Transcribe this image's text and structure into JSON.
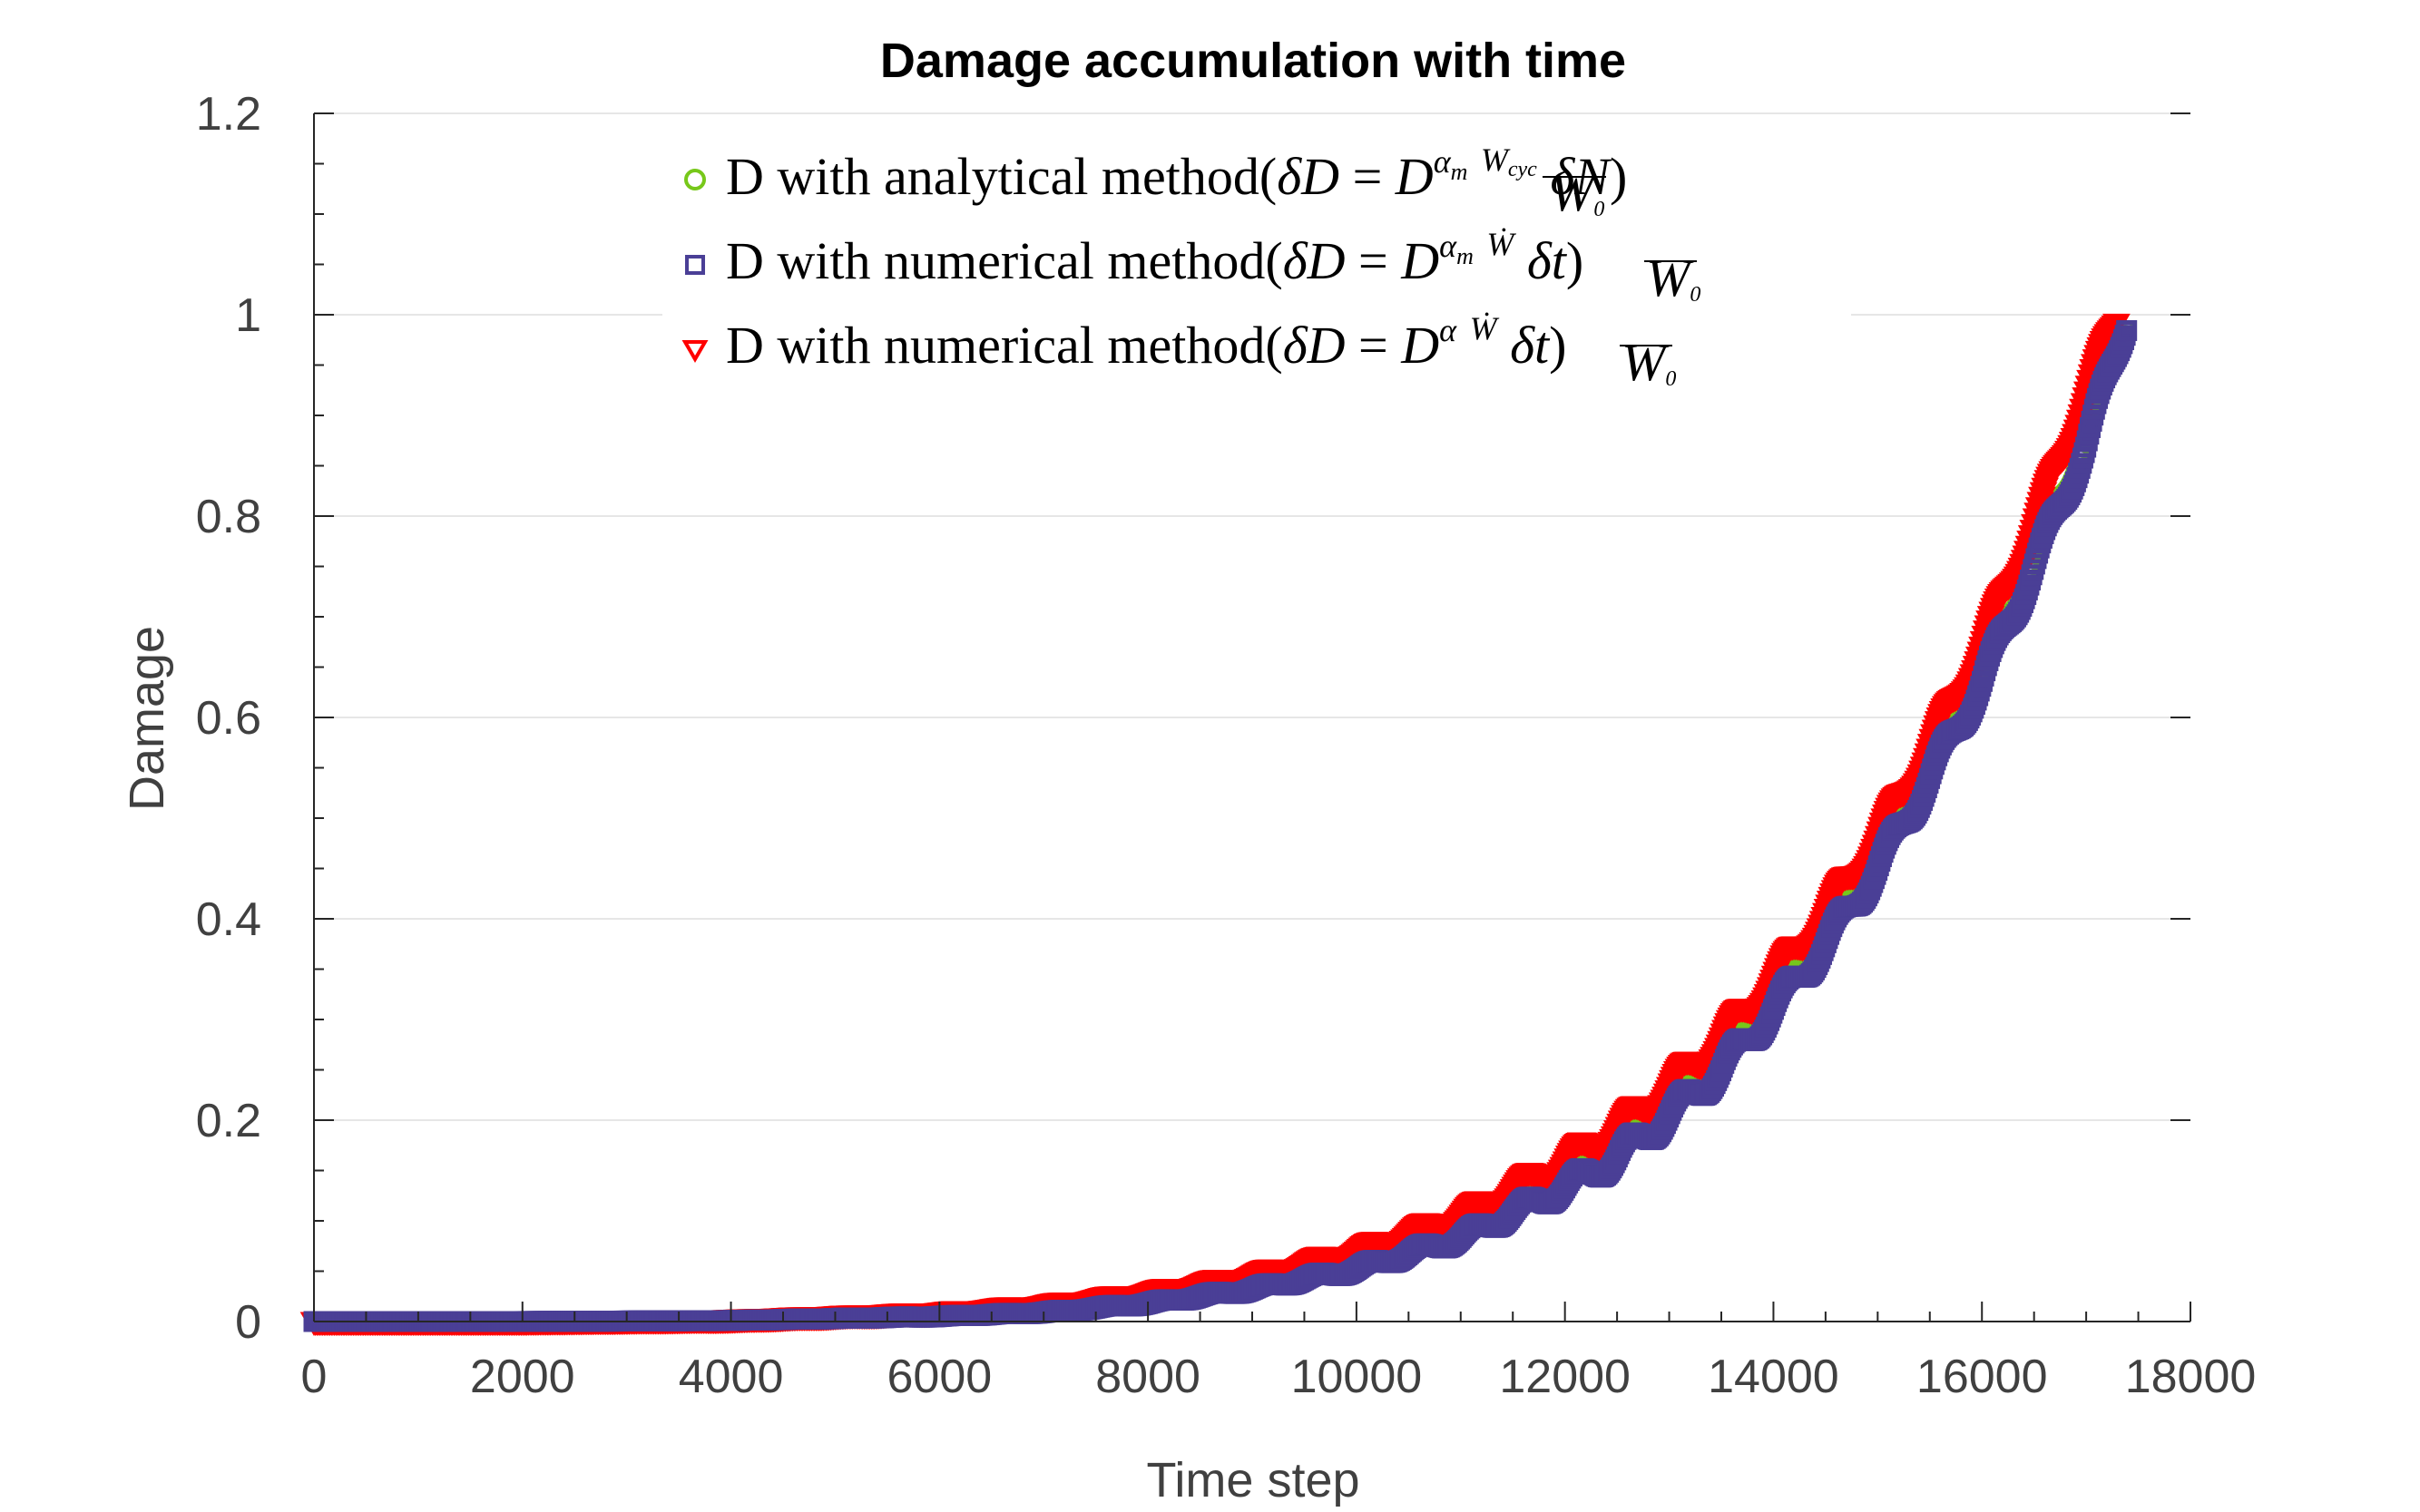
{
  "chart_data": {
    "type": "scatter",
    "title": "Damage accumulation with time",
    "xlabel": "Time step",
    "ylabel": "Damage",
    "xlim": [
      0,
      18000
    ],
    "ylim": [
      0,
      1.2
    ],
    "xticks": [
      0,
      2000,
      4000,
      6000,
      8000,
      10000,
      12000,
      14000,
      16000,
      18000
    ],
    "yticks": [
      0,
      0.2,
      0.4,
      0.6,
      0.8,
      1,
      1.2
    ],
    "xtick_labels": [
      "0",
      "2000",
      "4000",
      "6000",
      "8000",
      "10000",
      "12000",
      "14000",
      "16000",
      "18000"
    ],
    "ytick_labels": [
      "0",
      "0.2",
      "0.4",
      "0.6",
      "0.8",
      "1",
      "1.2"
    ],
    "grid": true,
    "legend_position": "top",
    "x_end": 17400,
    "series": [
      {
        "name": "D with analytical method(δD = D^(α_m) (W_cyc/W_0) δN)",
        "marker": "circle",
        "color": "#77c81a",
        "x": [
          0,
          2000,
          4000,
          6000,
          7000,
          8000,
          9000,
          10000,
          11000,
          12000,
          12500,
          13000,
          13500,
          14000,
          14500,
          15000,
          15500,
          16000,
          16500,
          17000,
          17400
        ],
        "values": [
          0,
          0,
          0.001,
          0.006,
          0.011,
          0.021,
          0.036,
          0.057,
          0.089,
          0.14,
          0.17,
          0.215,
          0.26,
          0.32,
          0.385,
          0.46,
          0.55,
          0.645,
          0.76,
          0.88,
          1.0
        ]
      },
      {
        "name": "D with numerical method(δD = D^(α_m) (Ẇ/W_0) δt)",
        "marker": "square",
        "color": "#4a3f96",
        "x": [
          0,
          2000,
          4000,
          6000,
          7000,
          8000,
          9000,
          10000,
          11000,
          12000,
          12500,
          13000,
          13500,
          14000,
          14500,
          15000,
          15500,
          16000,
          16500,
          17000,
          17400
        ],
        "values": [
          0,
          0,
          0.001,
          0.005,
          0.009,
          0.018,
          0.032,
          0.052,
          0.083,
          0.133,
          0.163,
          0.205,
          0.25,
          0.31,
          0.375,
          0.45,
          0.54,
          0.635,
          0.75,
          0.87,
          1.0
        ]
      },
      {
        "name": "D with numerical method(δD = D^α (Ẇ/W_0) δt)",
        "marker": "triangle-down",
        "color": "#ff0000",
        "x": [
          0,
          2000,
          4000,
          6000,
          7000,
          8000,
          9000,
          10000,
          11000,
          12000,
          12500,
          13000,
          13500,
          14000,
          14500,
          15000,
          15500,
          16000,
          16500,
          17000,
          17300
        ],
        "values": [
          0,
          0,
          0.002,
          0.009,
          0.016,
          0.028,
          0.045,
          0.069,
          0.104,
          0.157,
          0.19,
          0.232,
          0.28,
          0.34,
          0.405,
          0.48,
          0.57,
          0.67,
          0.79,
          0.92,
          1.0
        ]
      }
    ]
  }
}
